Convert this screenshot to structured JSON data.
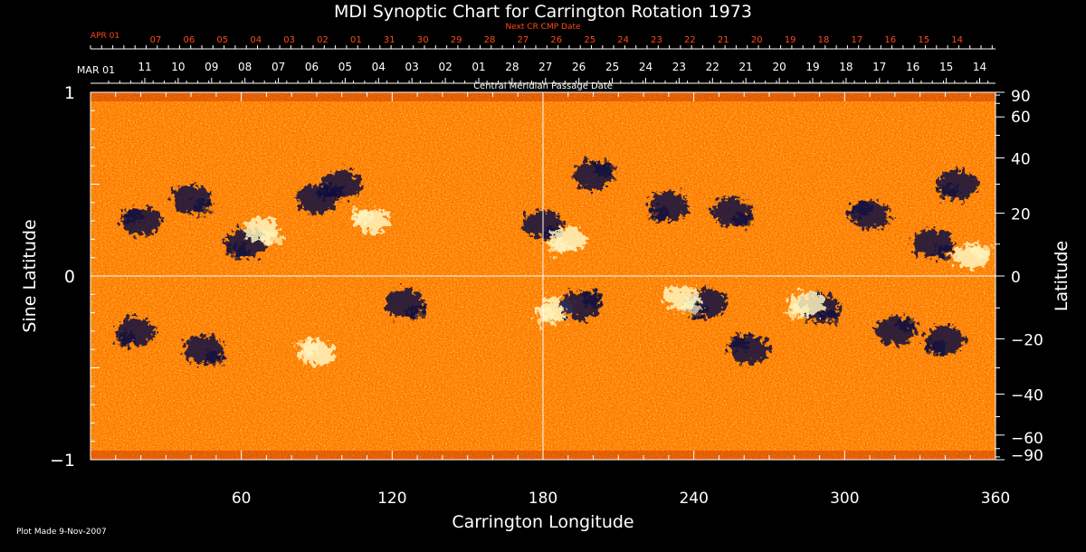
{
  "chart_data": {
    "type": "heatmap",
    "title": "MDI Synoptic Chart for Carrington Rotation 1973",
    "xlabel": "Carrington Longitude",
    "ylabel_left": "Sine Latitude",
    "ylabel_right": "Latitude",
    "xlim": [
      0,
      360
    ],
    "ylim": [
      -1,
      1
    ],
    "x_ticks": [
      60,
      120,
      180,
      240,
      300,
      360
    ],
    "y_ticks_left": [
      {
        "label": "1",
        "value": 1
      },
      {
        "label": "0",
        "value": 0
      },
      {
        "label": "−1",
        "value": -1
      }
    ],
    "y_ticks_right": [
      90,
      60,
      40,
      20,
      0,
      -20,
      -40,
      -60,
      -90
    ],
    "y_ticks_right_labels": [
      "90",
      "60",
      "40",
      "20",
      "0",
      "−20",
      "−40",
      "−60",
      "−90"
    ],
    "top_axis": {
      "label": "Central Meridian Passage Date",
      "start_label": "MAR 01",
      "labels": [
        "11",
        "10",
        "09",
        "08",
        "07",
        "06",
        "05",
        "04",
        "03",
        "02",
        "01",
        "28",
        "27",
        "26",
        "25",
        "24",
        "23",
        "22",
        "21",
        "20",
        "19",
        "18",
        "17",
        "16",
        "15",
        "14"
      ]
    },
    "next_axis": {
      "label": "Next CR CMP Date",
      "start_label": "APR 01",
      "labels": [
        "07",
        "06",
        "05",
        "04",
        "03",
        "02",
        "01",
        "31",
        "30",
        "29",
        "28",
        "27",
        "26",
        "25",
        "24",
        "23",
        "22",
        "21",
        "20",
        "19",
        "18",
        "17",
        "16",
        "15",
        "14"
      ]
    },
    "colormap": {
      "negative": "#0c0c40",
      "low": "#b01e00",
      "mid": "#ff5a00",
      "high": "#fff6c0"
    },
    "grid": "crosshair at longitude 180 and sine latitude 0",
    "regions": [
      {
        "lon": 20,
        "lat": 0.3,
        "polarity": "negative"
      },
      {
        "lon": 40,
        "lat": 0.42,
        "polarity": "negative"
      },
      {
        "lon": 62,
        "lat": 0.18,
        "polarity": "negative"
      },
      {
        "lon": 90,
        "lat": 0.42,
        "polarity": "negative"
      },
      {
        "lon": 100,
        "lat": 0.5,
        "polarity": "negative"
      },
      {
        "lon": 68,
        "lat": 0.25,
        "polarity": "positive"
      },
      {
        "lon": 112,
        "lat": 0.3,
        "polarity": "positive"
      },
      {
        "lon": 180,
        "lat": 0.28,
        "polarity": "negative"
      },
      {
        "lon": 190,
        "lat": 0.2,
        "polarity": "positive"
      },
      {
        "lon": 200,
        "lat": 0.55,
        "polarity": "negative"
      },
      {
        "lon": 230,
        "lat": 0.38,
        "polarity": "negative"
      },
      {
        "lon": 255,
        "lat": 0.35,
        "polarity": "negative"
      },
      {
        "lon": 310,
        "lat": 0.33,
        "polarity": "negative"
      },
      {
        "lon": 335,
        "lat": 0.18,
        "polarity": "negative"
      },
      {
        "lon": 345,
        "lat": 0.5,
        "polarity": "negative"
      },
      {
        "lon": 350,
        "lat": 0.1,
        "polarity": "positive"
      },
      {
        "lon": 18,
        "lat": -0.3,
        "polarity": "negative"
      },
      {
        "lon": 45,
        "lat": -0.4,
        "polarity": "negative"
      },
      {
        "lon": 90,
        "lat": -0.42,
        "polarity": "positive"
      },
      {
        "lon": 125,
        "lat": -0.15,
        "polarity": "negative"
      },
      {
        "lon": 185,
        "lat": -0.18,
        "polarity": "positive"
      },
      {
        "lon": 195,
        "lat": -0.16,
        "polarity": "negative"
      },
      {
        "lon": 245,
        "lat": -0.15,
        "polarity": "negative"
      },
      {
        "lon": 235,
        "lat": -0.12,
        "polarity": "positive"
      },
      {
        "lon": 262,
        "lat": -0.4,
        "polarity": "negative"
      },
      {
        "lon": 290,
        "lat": -0.17,
        "polarity": "negative"
      },
      {
        "lon": 285,
        "lat": -0.15,
        "polarity": "positive"
      },
      {
        "lon": 320,
        "lat": -0.3,
        "polarity": "negative"
      },
      {
        "lon": 340,
        "lat": -0.35,
        "polarity": "negative"
      }
    ]
  },
  "footer": {
    "plot_made": "Plot Made  9-Nov-2007"
  }
}
